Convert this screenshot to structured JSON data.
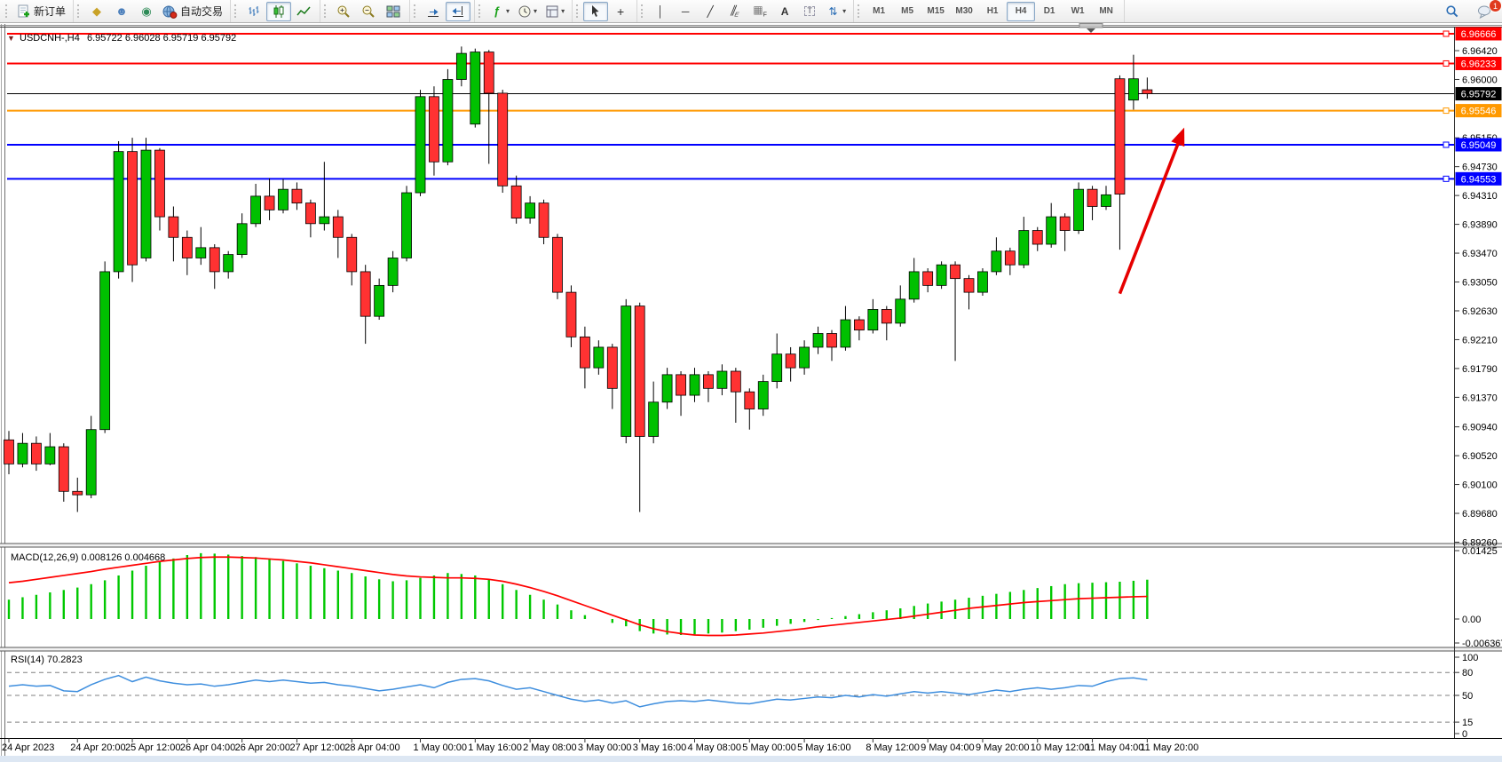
{
  "toolbar": {
    "groups": [
      {
        "items": [
          {
            "name": "new-order-button",
            "icon": "new-order",
            "label": "新订单"
          }
        ]
      },
      {
        "items": [
          {
            "name": "chart-profile-button",
            "icon": "gold-cube"
          },
          {
            "name": "market-watch-button",
            "icon": "person"
          },
          {
            "name": "signals-button",
            "icon": "signal"
          },
          {
            "name": "autotrading-button",
            "icon": "globe-red",
            "label": "自动交易"
          }
        ]
      },
      {
        "items": [
          {
            "name": "bar-chart-button",
            "icon": "bars"
          },
          {
            "name": "candlestick-chart-button",
            "icon": "candles",
            "active": true
          },
          {
            "name": "line-chart-button",
            "icon": "line"
          }
        ]
      },
      {
        "items": [
          {
            "name": "zoom-in-button",
            "icon": "zoom-in"
          },
          {
            "name": "zoom-out-button",
            "icon": "zoom-out"
          },
          {
            "name": "tile-windows-button",
            "icon": "tiles"
          }
        ]
      },
      {
        "items": [
          {
            "name": "auto-scroll-button",
            "icon": "autoscroll"
          },
          {
            "name": "chart-shift-button",
            "icon": "chartshift",
            "active": true
          }
        ]
      },
      {
        "items": [
          {
            "name": "indicators-button",
            "icon": "indicator",
            "caret": true
          },
          {
            "name": "periods-button",
            "icon": "clock",
            "caret": true
          },
          {
            "name": "templates-button",
            "icon": "template",
            "caret": true
          }
        ]
      },
      {
        "items": [
          {
            "name": "cursor-button",
            "icon": "cursor",
            "active": true
          },
          {
            "name": "crosshair-button",
            "icon": "crosshair"
          }
        ]
      },
      {
        "items": [
          {
            "name": "vertical-line-button",
            "icon": "vline"
          },
          {
            "name": "horizontal-line-button",
            "icon": "hline"
          },
          {
            "name": "trendline-button",
            "icon": "trendline"
          },
          {
            "name": "equidistant-channel-button",
            "icon": "channel"
          },
          {
            "name": "fibonacci-button",
            "icon": "fibo"
          },
          {
            "name": "text-button",
            "icon": "text-a"
          },
          {
            "name": "text-label-button",
            "icon": "text-t"
          },
          {
            "name": "shapes-button",
            "icon": "shapes",
            "caret": true
          }
        ]
      }
    ],
    "timeframes": [
      "M1",
      "M5",
      "M15",
      "M30",
      "H1",
      "H4",
      "D1",
      "W1",
      "MN"
    ],
    "active_timeframe": "H4",
    "notification_count": "1"
  },
  "chart": {
    "symbol_period": "USDCNH-,H4",
    "ohlc_text": "6.95722 6.96028 6.95719 6.95792",
    "macd_label": "MACD(12,26,9) 0.008126 0.004668",
    "rsi_label": "RSI(14) 70.2823"
  },
  "chart_data": {
    "type": "candlestick",
    "symbol": "USDCNH",
    "timeframe": "H4",
    "title_ohlc": {
      "open": 6.95722,
      "high": 6.96028,
      "low": 6.95719,
      "close": 6.95792
    },
    "current_price": 6.95792,
    "price_axis_ticks": [
      "6.96420",
      "6.96000",
      "6.95150",
      "6.94730",
      "6.94310",
      "6.93890",
      "6.93470",
      "6.93050",
      "6.92630",
      "6.92210",
      "6.91790",
      "6.91370",
      "6.90940",
      "6.90520",
      "6.90100",
      "6.89680",
      "6.89260"
    ],
    "hlines": [
      {
        "price": 6.96666,
        "label": "6.96666",
        "color": "#FF0000",
        "width": 2,
        "handle": true
      },
      {
        "price": 6.96233,
        "label": "6.96233",
        "color": "#FF0000",
        "width": 2,
        "handle": true
      },
      {
        "price": 6.95792,
        "label": "6.95792",
        "color": "#000000",
        "width": 1,
        "handle": false
      },
      {
        "price": 6.95546,
        "label": "6.95546",
        "color": "#FF9900",
        "width": 2,
        "handle": true
      },
      {
        "price": 6.95049,
        "label": "6.95049",
        "color": "#0000FF",
        "width": 2,
        "handle": true
      },
      {
        "price": 6.94553,
        "label": "6.94553",
        "color": "#0000FF",
        "width": 2,
        "handle": true
      }
    ],
    "time_labels": [
      {
        "bar": 0,
        "text": "24 Apr 2023"
      },
      {
        "bar": 5,
        "text": "24 Apr 20:00"
      },
      {
        "bar": 9,
        "text": "25 Apr 12:00"
      },
      {
        "bar": 13,
        "text": "26 Apr 04:00"
      },
      {
        "bar": 17,
        "text": "26 Apr 20:00"
      },
      {
        "bar": 21,
        "text": "27 Apr 12:00"
      },
      {
        "bar": 25,
        "text": "28 Apr 04:00"
      },
      {
        "bar": 30,
        "text": "1 May 00:00"
      },
      {
        "bar": 34,
        "text": "1 May 16:00"
      },
      {
        "bar": 38,
        "text": "2 May 08:00"
      },
      {
        "bar": 42,
        "text": "3 May 00:00"
      },
      {
        "bar": 46,
        "text": "3 May 16:00"
      },
      {
        "bar": 50,
        "text": "4 May 08:00"
      },
      {
        "bar": 54,
        "text": "5 May 00:00"
      },
      {
        "bar": 58,
        "text": "5 May 16:00"
      },
      {
        "bar": 63,
        "text": "8 May 12:00"
      },
      {
        "bar": 67,
        "text": "9 May 04:00"
      },
      {
        "bar": 71,
        "text": "9 May 20:00"
      },
      {
        "bar": 75,
        "text": "10 May 12:00"
      },
      {
        "bar": 79,
        "text": "11 May 04:00"
      },
      {
        "bar": 83,
        "text": "11 May 20:00"
      }
    ],
    "candles": [
      [
        6.9075,
        6.9088,
        6.9025,
        6.904
      ],
      [
        6.904,
        6.9085,
        6.9035,
        6.907
      ],
      [
        6.907,
        6.908,
        6.903,
        6.904
      ],
      [
        6.904,
        6.9085,
        6.9038,
        6.9065
      ],
      [
        6.9065,
        6.907,
        6.8985,
        6.9
      ],
      [
        6.9,
        6.902,
        6.897,
        6.8995
      ],
      [
        6.8995,
        6.911,
        6.899,
        6.909
      ],
      [
        6.909,
        6.9335,
        6.9085,
        6.932
      ],
      [
        6.932,
        6.951,
        6.931,
        6.9495
      ],
      [
        6.9495,
        6.9515,
        6.9305,
        6.933
      ],
      [
        6.934,
        6.9515,
        6.9335,
        6.9497
      ],
      [
        6.9497,
        6.95,
        6.938,
        6.94
      ],
      [
        6.94,
        6.9415,
        6.9335,
        6.937
      ],
      [
        6.937,
        6.938,
        6.9315,
        6.934
      ],
      [
        6.934,
        6.9385,
        6.933,
        6.9355
      ],
      [
        6.9355,
        6.936,
        6.9295,
        6.932
      ],
      [
        6.932,
        6.935,
        6.931,
        6.9345
      ],
      [
        6.9345,
        6.9405,
        6.934,
        6.939
      ],
      [
        6.939,
        6.9448,
        6.9385,
        6.943
      ],
      [
        6.943,
        6.9456,
        6.9395,
        6.941
      ],
      [
        6.941,
        6.9455,
        6.9405,
        6.944
      ],
      [
        6.944,
        6.945,
        6.941,
        6.942
      ],
      [
        6.942,
        6.9425,
        6.937,
        6.939
      ],
      [
        6.939,
        6.948,
        6.938,
        6.94
      ],
      [
        6.94,
        6.941,
        6.934,
        6.937
      ],
      [
        6.937,
        6.9375,
        6.93,
        6.932
      ],
      [
        6.932,
        6.933,
        6.9215,
        6.9255
      ],
      [
        6.9255,
        6.931,
        6.925,
        6.93
      ],
      [
        6.93,
        6.935,
        6.929,
        6.934
      ],
      [
        6.934,
        6.9445,
        6.9335,
        6.9435
      ],
      [
        6.9435,
        6.9585,
        6.943,
        6.9575
      ],
      [
        6.9575,
        6.959,
        6.946,
        6.948
      ],
      [
        6.948,
        6.9615,
        6.9475,
        6.96
      ],
      [
        6.96,
        6.9648,
        6.959,
        6.9638
      ],
      [
        6.9535,
        6.9645,
        6.953,
        6.964
      ],
      [
        6.964,
        6.9643,
        6.9477,
        6.958
      ],
      [
        6.958,
        6.9585,
        6.9435,
        6.9445
      ],
      [
        6.9445,
        6.946,
        6.939,
        6.9398
      ],
      [
        6.9398,
        6.943,
        6.939,
        6.942
      ],
      [
        6.942,
        6.9425,
        6.936,
        6.937
      ],
      [
        6.937,
        6.9375,
        6.928,
        6.929
      ],
      [
        6.929,
        6.93,
        6.921,
        6.9225
      ],
      [
        6.9225,
        6.924,
        6.915,
        6.918
      ],
      [
        6.918,
        6.922,
        6.917,
        6.921
      ],
      [
        6.921,
        6.9215,
        6.912,
        6.915
      ],
      [
        6.908,
        6.928,
        6.907,
        6.927
      ],
      [
        6.927,
        6.9275,
        6.897,
        6.908
      ],
      [
        6.908,
        6.916,
        6.907,
        6.913
      ],
      [
        6.913,
        6.918,
        6.912,
        6.917
      ],
      [
        6.917,
        6.9175,
        6.911,
        6.914
      ],
      [
        6.914,
        6.918,
        6.913,
        6.917
      ],
      [
        6.917,
        6.9175,
        6.913,
        6.915
      ],
      [
        6.915,
        6.9185,
        6.914,
        6.9175
      ],
      [
        6.9175,
        6.918,
        6.91,
        6.9145
      ],
      [
        6.9145,
        6.915,
        6.909,
        6.912
      ],
      [
        6.912,
        6.917,
        6.911,
        6.916
      ],
      [
        6.916,
        6.923,
        6.915,
        6.92
      ],
      [
        6.92,
        6.921,
        6.916,
        6.918
      ],
      [
        6.918,
        6.922,
        6.917,
        6.921
      ],
      [
        6.921,
        6.924,
        6.92,
        6.923
      ],
      [
        6.923,
        6.9235,
        6.919,
        6.921
      ],
      [
        6.921,
        6.927,
        6.9205,
        6.925
      ],
      [
        6.925,
        6.9255,
        6.922,
        6.9235
      ],
      [
        6.9235,
        6.928,
        6.923,
        6.9265
      ],
      [
        6.9265,
        6.927,
        6.922,
        6.9245
      ],
      [
        6.9245,
        6.93,
        6.924,
        6.928
      ],
      [
        6.928,
        6.934,
        6.9275,
        6.932
      ],
      [
        6.932,
        6.9325,
        6.929,
        6.93
      ],
      [
        6.93,
        6.9335,
        6.9295,
        6.933
      ],
      [
        6.933,
        6.9335,
        6.919,
        6.931
      ],
      [
        6.931,
        6.9315,
        6.9265,
        6.929
      ],
      [
        6.929,
        6.9325,
        6.9285,
        6.932
      ],
      [
        6.932,
        6.937,
        6.9315,
        6.935
      ],
      [
        6.935,
        6.9355,
        6.9315,
        6.933
      ],
      [
        6.933,
        6.94,
        6.9325,
        6.938
      ],
      [
        6.938,
        6.9385,
        6.935,
        6.936
      ],
      [
        6.936,
        6.942,
        6.9355,
        6.94
      ],
      [
        6.94,
        6.9405,
        6.935,
        6.938
      ],
      [
        6.938,
        6.945,
        6.9375,
        6.944
      ],
      [
        6.944,
        6.9445,
        6.9395,
        6.9415
      ],
      [
        6.9415,
        6.9445,
        6.941,
        6.9432
      ],
      [
        6.9601,
        6.9606,
        6.9352,
        6.9433
      ],
      [
        6.957,
        6.9636,
        6.9556,
        6.9601
      ],
      [
        6.9585,
        6.96028,
        6.95719,
        6.95792
      ]
    ],
    "macd": {
      "params": "12,26,9",
      "current_macd": 0.008126,
      "current_signal": 0.004668,
      "axis_ticks": [
        "0.01425",
        "0.00",
        "-0.006367"
      ],
      "histogram": [
        0.004,
        0.0045,
        0.005,
        0.0055,
        0.006,
        0.0065,
        0.0072,
        0.008,
        0.009,
        0.01,
        0.011,
        0.0118,
        0.0125,
        0.0132,
        0.0136,
        0.0135,
        0.0133,
        0.013,
        0.0128,
        0.0125,
        0.012,
        0.0115,
        0.011,
        0.0105,
        0.01,
        0.0095,
        0.0088,
        0.0082,
        0.0078,
        0.008,
        0.0085,
        0.009,
        0.0095,
        0.0093,
        0.009,
        0.0082,
        0.0072,
        0.006,
        0.005,
        0.004,
        0.003,
        0.0018,
        0.0008,
        0.0,
        -0.0008,
        -0.0015,
        -0.0025,
        -0.003,
        -0.0032,
        -0.0033,
        -0.0032,
        -0.003,
        -0.0028,
        -0.0025,
        -0.0022,
        -0.0018,
        -0.0014,
        -0.001,
        -0.0006,
        -0.0002,
        0.0002,
        0.0006,
        0.001,
        0.0014,
        0.0018,
        0.0022,
        0.0027,
        0.0032,
        0.0036,
        0.004,
        0.0044,
        0.0048,
        0.0052,
        0.0056,
        0.006,
        0.0064,
        0.0068,
        0.0072,
        0.0074,
        0.0075,
        0.0076,
        0.0077,
        0.0079,
        0.008126
      ],
      "signal": [
        0.0075,
        0.0078,
        0.0082,
        0.0086,
        0.009,
        0.0094,
        0.0098,
        0.0103,
        0.0107,
        0.0111,
        0.0115,
        0.0119,
        0.0122,
        0.0125,
        0.0127,
        0.0128,
        0.0128,
        0.0127,
        0.0126,
        0.0124,
        0.0122,
        0.0119,
        0.0116,
        0.0112,
        0.0108,
        0.0104,
        0.01,
        0.0096,
        0.0092,
        0.0089,
        0.0087,
        0.0086,
        0.0085,
        0.0085,
        0.0084,
        0.0082,
        0.0078,
        0.0072,
        0.0065,
        0.0057,
        0.0048,
        0.0038,
        0.0028,
        0.0018,
        0.0008,
        -0.0002,
        -0.0012,
        -0.002,
        -0.0026,
        -0.003,
        -0.0033,
        -0.0034,
        -0.0034,
        -0.0033,
        -0.0031,
        -0.0029,
        -0.0026,
        -0.0023,
        -0.002,
        -0.0016,
        -0.0013,
        -0.001,
        -0.0007,
        -0.0004,
        -0.0001,
        0.0002,
        0.0006,
        0.001,
        0.0014,
        0.0018,
        0.0022,
        0.0025,
        0.0028,
        0.0031,
        0.0034,
        0.0036,
        0.0038,
        0.004,
        0.0042,
        0.0043,
        0.0044,
        0.0045,
        0.0046,
        0.004668
      ]
    },
    "rsi": {
      "period": 14,
      "current": 70.2823,
      "axis_ticks": [
        "100",
        "80",
        "50",
        "15",
        "0"
      ],
      "levels": [
        80,
        50,
        15
      ],
      "values": [
        62,
        64,
        62,
        63,
        56,
        55,
        64,
        71,
        76,
        68,
        74,
        69,
        66,
        64,
        65,
        62,
        64,
        67,
        70,
        68,
        70,
        68,
        66,
        67,
        64,
        62,
        59,
        56,
        58,
        61,
        64,
        60,
        67,
        71,
        72,
        69,
        63,
        58,
        60,
        55,
        50,
        45,
        42,
        44,
        40,
        43,
        35,
        39,
        42,
        43,
        42,
        44,
        42,
        40,
        39,
        42,
        45,
        44,
        46,
        48,
        47,
        50,
        48,
        51,
        49,
        52,
        55,
        53,
        55,
        53,
        51,
        54,
        57,
        55,
        58,
        60,
        58,
        60,
        63,
        62,
        68,
        72,
        73,
        70.2823
      ]
    },
    "arrow": {
      "from": {
        "bar": 81.0,
        "price": 6.9288
      },
      "to": {
        "bar": 85.7,
        "price": 6.953
      },
      "color": "#E60000"
    }
  }
}
